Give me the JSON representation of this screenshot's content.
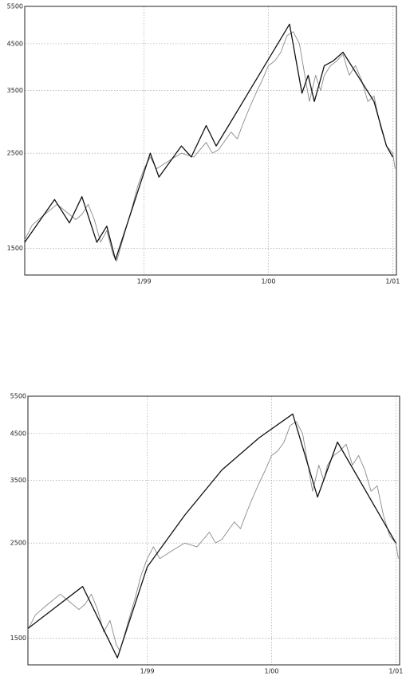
{
  "chart_data": [
    {
      "type": "line",
      "log_scale": "y",
      "grid": true,
      "xlim": [
        1998.04,
        2001.03
      ],
      "ylim": [
        1300,
        5500
      ],
      "xticks": [
        {
          "value": 1999,
          "label": "1/99"
        },
        {
          "value": 2000,
          "label": "1/00"
        },
        {
          "value": 2001,
          "label": "1/01"
        }
      ],
      "yticks": [
        1500,
        2500,
        3500,
        4500,
        5500
      ],
      "series": [
        {
          "color": "#8a8a8a",
          "x": [
            1998.04,
            1998.1,
            1998.2,
            1998.3,
            1998.35,
            1998.45,
            1998.5,
            1998.55,
            1998.6,
            1998.65,
            1998.7,
            1998.75,
            1998.78,
            1998.85,
            1998.9,
            1998.95,
            1999.0,
            1999.05,
            1999.1,
            1999.2,
            1999.3,
            1999.4,
            1999.5,
            1999.55,
            1999.6,
            1999.7,
            1999.75,
            1999.8,
            1999.85,
            1999.9,
            1999.95,
            2000.0,
            2000.05,
            2000.1,
            2000.15,
            2000.2,
            2000.25,
            2000.3,
            2000.33,
            2000.38,
            2000.42,
            2000.45,
            2000.5,
            2000.55,
            2000.6,
            2000.65,
            2000.7,
            2000.75,
            2000.8,
            2000.85,
            2000.9,
            2000.95,
            2001.0,
            2001.02
          ],
          "values": [
            1570,
            1700,
            1800,
            1900,
            1850,
            1750,
            1800,
            1900,
            1750,
            1550,
            1650,
            1450,
            1400,
            1650,
            1850,
            2100,
            2300,
            2450,
            2300,
            2400,
            2500,
            2450,
            2650,
            2500,
            2550,
            2800,
            2700,
            2950,
            3200,
            3450,
            3700,
            4000,
            4100,
            4300,
            4700,
            4800,
            4500,
            3700,
            3300,
            3800,
            3500,
            3800,
            4000,
            4100,
            4250,
            3800,
            4000,
            3700,
            3300,
            3400,
            2900,
            2600,
            2500,
            2300
          ]
        },
        {
          "color": "#111111",
          "x": [
            1998.04,
            1998.28,
            1998.4,
            1998.5,
            1998.62,
            1998.7,
            1998.77,
            1999.05,
            1999.12,
            1999.3,
            1999.38,
            1999.5,
            1999.58,
            1999.68,
            2000.17,
            2000.27,
            2000.32,
            2000.37,
            2000.45,
            2000.52,
            2000.6,
            2000.85,
            2000.95,
            2001.0
          ],
          "values": [
            1550,
            1950,
            1720,
            1980,
            1550,
            1690,
            1410,
            2500,
            2200,
            2600,
            2450,
            2900,
            2600,
            2900,
            5000,
            3450,
            3800,
            3300,
            4000,
            4100,
            4300,
            3300,
            2600,
            2450
          ]
        }
      ]
    },
    {
      "type": "line",
      "log_scale": "y",
      "grid": true,
      "xlim": [
        1998.04,
        2001.03
      ],
      "ylim": [
        1300,
        5500
      ],
      "xticks": [
        {
          "value": 1999,
          "label": "1/99"
        },
        {
          "value": 2000,
          "label": "1/00"
        },
        {
          "value": 2001,
          "label": "1/01"
        }
      ],
      "yticks": [
        1500,
        2500,
        3500,
        4500,
        5500
      ],
      "series": [
        {
          "color": "#8a8a8a",
          "x": [
            1998.04,
            1998.1,
            1998.2,
            1998.3,
            1998.35,
            1998.45,
            1998.5,
            1998.55,
            1998.6,
            1998.65,
            1998.7,
            1998.75,
            1998.78,
            1998.85,
            1998.9,
            1998.95,
            1999.0,
            1999.05,
            1999.1,
            1999.2,
            1999.3,
            1999.4,
            1999.5,
            1999.55,
            1999.6,
            1999.7,
            1999.75,
            1999.8,
            1999.85,
            1999.9,
            1999.95,
            2000.0,
            2000.05,
            2000.1,
            2000.15,
            2000.2,
            2000.25,
            2000.3,
            2000.33,
            2000.38,
            2000.42,
            2000.45,
            2000.5,
            2000.55,
            2000.6,
            2000.65,
            2000.7,
            2000.75,
            2000.8,
            2000.85,
            2000.9,
            2000.95,
            2001.0,
            2001.02
          ],
          "values": [
            1570,
            1700,
            1800,
            1900,
            1850,
            1750,
            1800,
            1900,
            1750,
            1550,
            1650,
            1450,
            1400,
            1650,
            1850,
            2100,
            2300,
            2450,
            2300,
            2400,
            2500,
            2450,
            2650,
            2500,
            2550,
            2800,
            2700,
            2950,
            3200,
            3450,
            3700,
            4000,
            4100,
            4300,
            4700,
            4800,
            4500,
            3700,
            3300,
            3800,
            3500,
            3800,
            4000,
            4100,
            4250,
            3800,
            4000,
            3700,
            3300,
            3400,
            2900,
            2600,
            2500,
            2300
          ]
        },
        {
          "color": "#111111",
          "x": [
            1998.04,
            1998.48,
            1998.76,
            1999.0,
            1999.3,
            1999.6,
            1999.9,
            2000.17,
            2000.37,
            2000.53,
            2001.0
          ],
          "values": [
            1580,
            1980,
            1350,
            2200,
            2900,
            3700,
            4400,
            5000,
            3200,
            4300,
            2500
          ]
        }
      ]
    }
  ]
}
